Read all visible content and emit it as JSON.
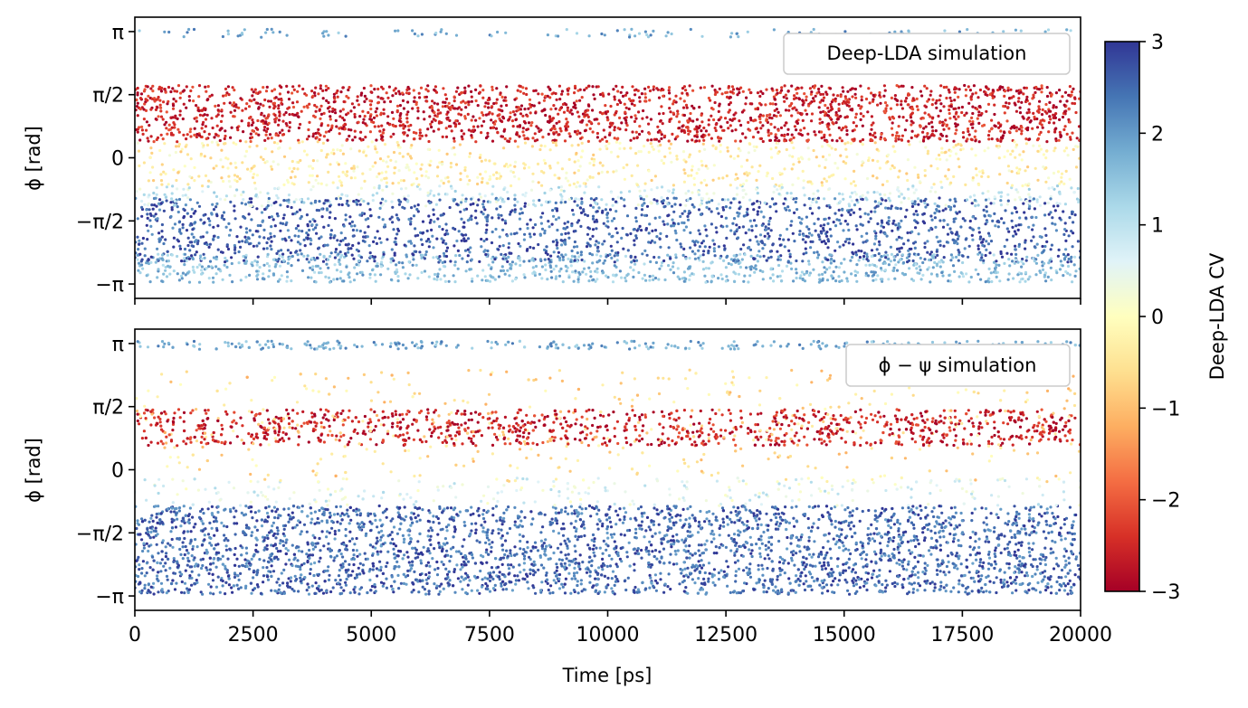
{
  "chart_data": [
    {
      "type": "scatter",
      "legend": "Deep-LDA simulation",
      "legend_position": "top-right",
      "ylabel": "ϕ [rad]",
      "xlim": [
        0,
        20000
      ],
      "ylim": [
        -3.5,
        3.5
      ],
      "yticks": [
        {
          "value": 3.1416,
          "label": "π"
        },
        {
          "value": 1.5708,
          "label": "π/2"
        },
        {
          "value": 0,
          "label": "0"
        },
        {
          "value": -1.5708,
          "label": "−π/2"
        },
        {
          "value": -3.1416,
          "label": "−π"
        }
      ],
      "color_variable": "Deep-LDA CV",
      "density_bands": [
        {
          "phi_range": [
            0.4,
            1.8
          ],
          "cv": -2.6,
          "share": 0.36
        },
        {
          "phi_range": [
            -0.7,
            0.4
          ],
          "cv": -0.3,
          "share": 0.12
        },
        {
          "phi_range": [
            -1.2,
            -0.7
          ],
          "cv": 0.8,
          "share": 0.06
        },
        {
          "phi_range": [
            -2.6,
            -1.0
          ],
          "cv": 2.6,
          "share": 0.3
        },
        {
          "phi_range": [
            -3.1,
            -2.4
          ],
          "cv": 1.6,
          "share": 0.14
        },
        {
          "phi_range": [
            3.0,
            3.2
          ],
          "cv": 1.8,
          "share": 0.02
        }
      ]
    },
    {
      "type": "scatter",
      "legend": "ϕ − ψ simulation",
      "legend_position": "top-right",
      "xlabel": "Time [ps]",
      "ylabel": "ϕ [rad]",
      "xlim": [
        0,
        20000
      ],
      "xticks": [
        0,
        2500,
        5000,
        7500,
        10000,
        12500,
        15000,
        17500,
        20000
      ],
      "ylim": [
        -3.5,
        3.5
      ],
      "yticks": [
        {
          "value": 3.1416,
          "label": "π"
        },
        {
          "value": 1.5708,
          "label": "π/2"
        },
        {
          "value": 0,
          "label": "0"
        },
        {
          "value": -1.5708,
          "label": "−π/2"
        },
        {
          "value": -3.1416,
          "label": "−π"
        }
      ],
      "color_variable": "Deep-LDA CV",
      "density_bands": [
        {
          "phi_range": [
            0.6,
            1.5
          ],
          "cv": -2.6,
          "share": 0.2
        },
        {
          "phi_range": [
            -0.3,
            2.5
          ],
          "cv": -0.6,
          "share": 0.08
        },
        {
          "phi_range": [
            -0.9,
            -0.2
          ],
          "cv": 0.6,
          "share": 0.05
        },
        {
          "phi_range": [
            -3.1,
            -0.9
          ],
          "cv": 2.5,
          "share": 0.62
        },
        {
          "phi_range": [
            3.0,
            3.2
          ],
          "cv": 1.8,
          "share": 0.05
        }
      ]
    }
  ],
  "colorbar": {
    "label": "Deep-LDA CV",
    "range": [
      -3,
      3
    ],
    "ticks": [
      "3",
      "2",
      "1",
      "0",
      "−1",
      "−2",
      "−3"
    ],
    "colormap": [
      "#a50026",
      "#d73027",
      "#f46d43",
      "#fdae61",
      "#fee090",
      "#ffffbf",
      "#e0f3f8",
      "#abd9e9",
      "#74add1",
      "#4575b4",
      "#313695"
    ]
  },
  "x_ticks": [
    "0",
    "2500",
    "5000",
    "7500",
    "10000",
    "12500",
    "15000",
    "17500",
    "20000"
  ]
}
